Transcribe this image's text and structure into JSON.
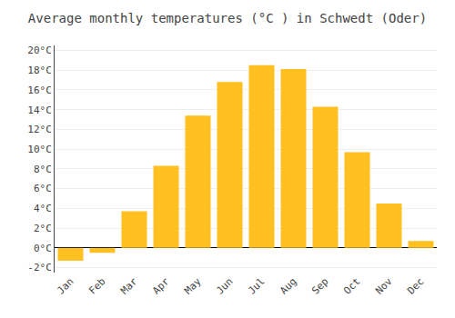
{
  "chart_data": {
    "type": "bar",
    "title": "Average monthly temperatures (°C ) in Schwedt (Oder)",
    "categories": [
      "Jan",
      "Feb",
      "Mar",
      "Apr",
      "May",
      "Jun",
      "Jul",
      "Aug",
      "Sep",
      "Oct",
      "Nov",
      "Dec"
    ],
    "values": [
      -1.3,
      -0.5,
      3.7,
      8.3,
      13.4,
      16.8,
      18.5,
      18.1,
      14.3,
      9.7,
      4.5,
      0.7
    ],
    "color": "#FFC020",
    "ylim": [
      -2.5,
      20.5
    ],
    "yticks": [
      {
        "value": -2,
        "label": "-2°C"
      },
      {
        "value": 0,
        "label": "0°C"
      },
      {
        "value": 2,
        "label": "2°C"
      },
      {
        "value": 4,
        "label": "4°C"
      },
      {
        "value": 6,
        "label": "6°C"
      },
      {
        "value": 8,
        "label": "8°C"
      },
      {
        "value": 10,
        "label": "10°C"
      },
      {
        "value": 12,
        "label": "12°C"
      },
      {
        "value": 14,
        "label": "14°C"
      },
      {
        "value": 16,
        "label": "16°C"
      },
      {
        "value": 18,
        "label": "18°C"
      },
      {
        "value": 20,
        "label": "20°C"
      }
    ],
    "grid": true
  }
}
